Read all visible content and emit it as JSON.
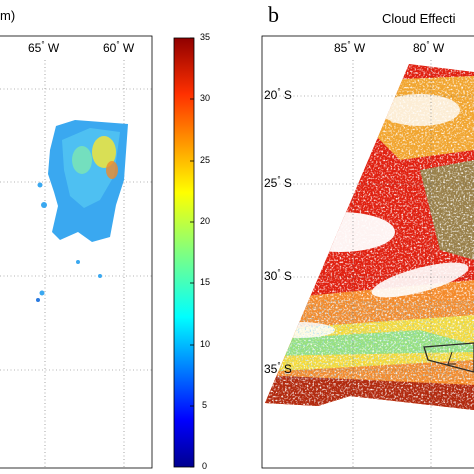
{
  "panel_a": {
    "title_fragment": "m)",
    "lon_labels": [
      {
        "deg": "65",
        "hemi": "W"
      },
      {
        "deg": "60",
        "hemi": "W"
      }
    ]
  },
  "colorbar": {
    "min": 0,
    "max": 35,
    "tick_labels": [
      "35",
      "30",
      "25",
      "20",
      "15",
      "10",
      "5",
      "0"
    ],
    "colors": [
      "#00008f",
      "#0000ff",
      "#0080ff",
      "#00ffff",
      "#80ff80",
      "#ffff00",
      "#ff8000",
      "#ff0000",
      "#800000"
    ]
  },
  "panel_b": {
    "letter": "b",
    "title_fragment": "Cloud Effecti",
    "lon_labels": [
      {
        "deg": "85",
        "hemi": "W"
      },
      {
        "deg": "80",
        "hemi": "W"
      }
    ],
    "lat_labels": [
      {
        "deg": "20",
        "hemi": "S"
      },
      {
        "deg": "25",
        "hemi": "S"
      },
      {
        "deg": "30",
        "hemi": "S"
      },
      {
        "deg": "35",
        "hemi": "S"
      }
    ]
  }
}
